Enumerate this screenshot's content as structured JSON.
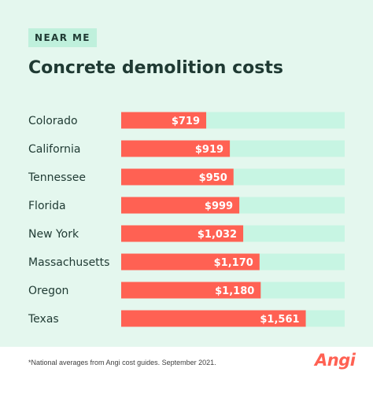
{
  "badge": "NEAR ME",
  "brand": "Angi",
  "footnote": "*National averages from Angi cost guides. September 2021.",
  "colors": {
    "background": "#E4F7EE",
    "badge": "#BFF0DC",
    "track": "#C7F5E3",
    "bar": "#FF6153",
    "text": "#1F3A33"
  },
  "chart_data": {
    "type": "bar",
    "orientation": "horizontal",
    "title": "Concrete demolition costs",
    "categories": [
      "Colorado",
      "California",
      "Tennessee",
      "Florida",
      "New York",
      "Massachusetts",
      "Oregon",
      "Texas"
    ],
    "values": [
      719,
      919,
      950,
      999,
      1032,
      1170,
      1180,
      1561
    ],
    "labels": [
      "$719",
      "$919",
      "$950",
      "$999",
      "$1,032",
      "$1,170",
      "$1,180",
      "$1,561"
    ],
    "xlim": [
      0,
      1890
    ],
    "grid": false,
    "legend": "none"
  }
}
